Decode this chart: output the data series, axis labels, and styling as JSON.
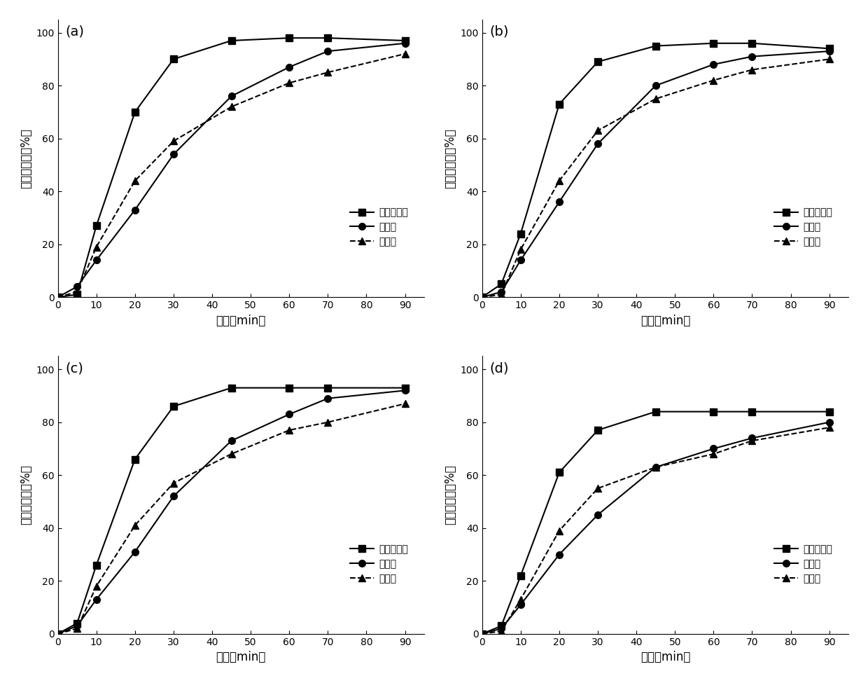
{
  "panels": [
    "(a)",
    "(b)",
    "(c)",
    "(d)"
  ],
  "xlabel": "时间（min）",
  "ylabel": "累积溢出度（%）",
  "legend_labels": [
    "丹七软胶囊",
    "丹七片",
    "七胶囊"
  ],
  "xlim": [
    0,
    95
  ],
  "ylim": [
    0,
    105
  ],
  "xticks": [
    0,
    10,
    20,
    30,
    40,
    50,
    60,
    70,
    80,
    90
  ],
  "yticks": [
    0,
    20,
    40,
    60,
    80,
    100
  ],
  "data": {
    "a": {
      "x": [
        0,
        5,
        10,
        20,
        30,
        45,
        60,
        70,
        90
      ],
      "soft_capsule": [
        0,
        1,
        27,
        70,
        90,
        97,
        98,
        98,
        97
      ],
      "tablet": [
        0,
        4,
        14,
        33,
        54,
        76,
        87,
        93,
        96
      ],
      "capsule": [
        0,
        2,
        19,
        44,
        59,
        72,
        81,
        85,
        92
      ]
    },
    "b": {
      "x": [
        0,
        5,
        10,
        20,
        30,
        45,
        60,
        70,
        90
      ],
      "soft_capsule": [
        0,
        5,
        24,
        73,
        89,
        95,
        96,
        96,
        94
      ],
      "tablet": [
        0,
        2,
        14,
        36,
        58,
        80,
        88,
        91,
        93
      ],
      "capsule": [
        0,
        1,
        18,
        44,
        63,
        75,
        82,
        86,
        90
      ]
    },
    "c": {
      "x": [
        0,
        5,
        10,
        20,
        30,
        45,
        60,
        70,
        90
      ],
      "soft_capsule": [
        0,
        4,
        26,
        66,
        86,
        93,
        93,
        93,
        93
      ],
      "tablet": [
        0,
        3,
        13,
        31,
        52,
        73,
        83,
        89,
        92
      ],
      "capsule": [
        0,
        2,
        18,
        41,
        57,
        68,
        77,
        80,
        87
      ]
    },
    "d": {
      "x": [
        0,
        5,
        10,
        20,
        30,
        45,
        60,
        70,
        90
      ],
      "soft_capsule": [
        0,
        3,
        22,
        61,
        77,
        84,
        84,
        84,
        84
      ],
      "tablet": [
        0,
        2,
        11,
        30,
        45,
        63,
        70,
        74,
        80
      ],
      "capsule": [
        0,
        1,
        13,
        39,
        55,
        63,
        68,
        73,
        78
      ]
    }
  }
}
